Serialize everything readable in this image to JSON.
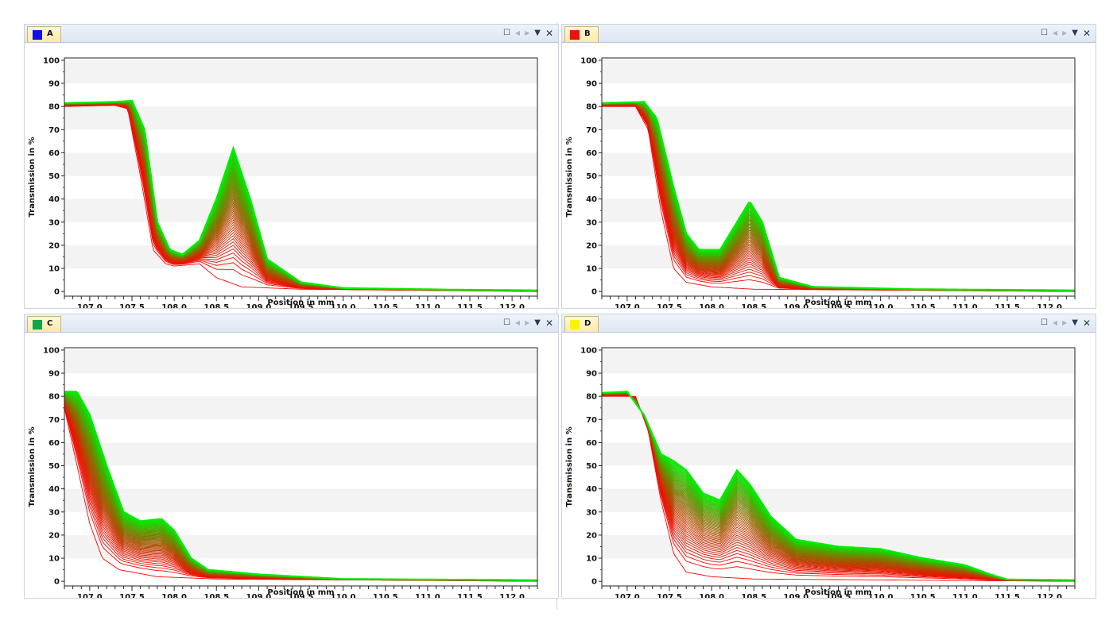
{
  "colors": {
    "red": "#ff0000",
    "green": "#00ee00",
    "grid_band": "#f3f3f3"
  },
  "window_controls": {
    "maximize_icon": "window-maximize-icon",
    "prev_icon": "scroll-left-icon",
    "next_icon": "scroll-right-icon",
    "menu_icon": "dropdown-menu-icon",
    "close_icon": "close-icon"
  },
  "panels": [
    {
      "tab_label": "A",
      "swatch_color": "#1010e8"
    },
    {
      "tab_label": "B",
      "swatch_color": "#ee1111"
    },
    {
      "tab_label": "C",
      "swatch_color": "#16a34a"
    },
    {
      "tab_label": "D",
      "swatch_color": "#f5f500"
    }
  ],
  "chart_data": [
    {
      "type": "line",
      "panel": "A",
      "title": "",
      "xlabel": "Position in mm",
      "ylabel": "Transmission in %",
      "xlim": [
        106.7,
        112.3
      ],
      "ylim": [
        -2,
        101
      ],
      "xticks": [
        "107.0",
        "107.5",
        "108.0",
        "108.5",
        "109.0",
        "109.5",
        "110.0",
        "110.5",
        "111.0",
        "111.5",
        "112.0"
      ],
      "yticks": [
        "0",
        "10",
        "20",
        "30",
        "40",
        "50",
        "60",
        "70",
        "80",
        "90",
        "100"
      ],
      "grid": "horizontal bands",
      "series_count": 60,
      "first_curve": [
        [
          106.7,
          80
        ],
        [
          107.3,
          80.5
        ],
        [
          107.45,
          79
        ],
        [
          107.6,
          50
        ],
        [
          107.75,
          18
        ],
        [
          107.9,
          12
        ],
        [
          108.0,
          11
        ],
        [
          108.3,
          12
        ],
        [
          108.5,
          6
        ],
        [
          108.8,
          2
        ],
        [
          109.5,
          1
        ],
        [
          112.3,
          0
        ]
      ],
      "last_curve": [
        [
          106.7,
          81.5
        ],
        [
          107.3,
          82
        ],
        [
          107.5,
          82.5
        ],
        [
          107.65,
          70
        ],
        [
          107.8,
          30
        ],
        [
          107.95,
          18
        ],
        [
          108.1,
          16
        ],
        [
          108.3,
          22
        ],
        [
          108.5,
          40
        ],
        [
          108.7,
          62
        ],
        [
          108.9,
          40
        ],
        [
          109.1,
          14
        ],
        [
          109.5,
          4
        ],
        [
          110.0,
          1.5
        ],
        [
          111.3,
          0.8
        ],
        [
          112.3,
          0.5
        ]
      ]
    },
    {
      "type": "line",
      "panel": "B",
      "title": "",
      "xlabel": "Position in mm",
      "ylabel": "Transmission in %",
      "xlim": [
        106.7,
        112.3
      ],
      "ylim": [
        -2,
        101
      ],
      "xticks": [
        "107.0",
        "107.5",
        "108.0",
        "108.5",
        "109.0",
        "109.5",
        "110.0",
        "110.5",
        "111.0",
        "111.5",
        "112.0"
      ],
      "yticks": [
        "0",
        "10",
        "20",
        "30",
        "40",
        "50",
        "60",
        "70",
        "80",
        "90",
        "100"
      ],
      "grid": "horizontal bands",
      "series_count": 60,
      "first_curve": [
        [
          106.7,
          80
        ],
        [
          107.1,
          80
        ],
        [
          107.25,
          70
        ],
        [
          107.4,
          35
        ],
        [
          107.55,
          10
        ],
        [
          107.7,
          4
        ],
        [
          108.0,
          2
        ],
        [
          108.5,
          1
        ],
        [
          112.3,
          0
        ]
      ],
      "last_curve": [
        [
          106.7,
          81.5
        ],
        [
          107.2,
          82
        ],
        [
          107.35,
          75
        ],
        [
          107.55,
          45
        ],
        [
          107.7,
          25
        ],
        [
          107.85,
          18
        ],
        [
          108.1,
          18
        ],
        [
          108.3,
          30
        ],
        [
          108.45,
          39
        ],
        [
          108.6,
          30
        ],
        [
          108.8,
          6
        ],
        [
          109.2,
          2
        ],
        [
          110.4,
          1
        ],
        [
          112.3,
          0.5
        ]
      ]
    },
    {
      "type": "line",
      "panel": "C",
      "title": "",
      "xlabel": "Position in mm",
      "ylabel": "Transmission in %",
      "xlim": [
        106.7,
        112.3
      ],
      "ylim": [
        -2,
        101
      ],
      "xticks": [
        "107.0",
        "107.5",
        "108.0",
        "108.5",
        "109.0",
        "109.5",
        "110.0",
        "110.5",
        "111.0",
        "111.5",
        "112.0"
      ],
      "yticks": [
        "0",
        "10",
        "20",
        "30",
        "40",
        "50",
        "60",
        "70",
        "80",
        "90",
        "100"
      ],
      "grid": "horizontal bands",
      "series_count": 60,
      "first_curve": [
        [
          106.7,
          75
        ],
        [
          106.85,
          50
        ],
        [
          107.0,
          25
        ],
        [
          107.15,
          10
        ],
        [
          107.35,
          5
        ],
        [
          107.8,
          2
        ],
        [
          108.5,
          1
        ],
        [
          112.3,
          0
        ]
      ],
      "last_curve": [
        [
          106.7,
          82
        ],
        [
          106.85,
          82
        ],
        [
          107.0,
          72
        ],
        [
          107.2,
          50
        ],
        [
          107.4,
          30
        ],
        [
          107.6,
          26
        ],
        [
          107.85,
          27
        ],
        [
          108.0,
          22
        ],
        [
          108.2,
          10
        ],
        [
          108.4,
          5
        ],
        [
          109.0,
          3
        ],
        [
          110.0,
          1
        ],
        [
          112.3,
          0.5
        ]
      ]
    },
    {
      "type": "line",
      "panel": "D",
      "title": "",
      "xlabel": "Position in mm",
      "ylabel": "Transmission in %",
      "xlim": [
        106.7,
        112.3
      ],
      "ylim": [
        -2,
        101
      ],
      "xticks": [
        "107.0",
        "107.5",
        "108.0",
        "108.5",
        "109.0",
        "109.5",
        "110.0",
        "110.5",
        "111.0",
        "111.5",
        "112.0"
      ],
      "yticks": [
        "0",
        "10",
        "20",
        "30",
        "40",
        "50",
        "60",
        "70",
        "80",
        "90",
        "100"
      ],
      "grid": "horizontal bands",
      "series_count": 60,
      "first_curve": [
        [
          106.7,
          80
        ],
        [
          107.1,
          80
        ],
        [
          107.25,
          65
        ],
        [
          107.4,
          35
        ],
        [
          107.55,
          12
        ],
        [
          107.7,
          4
        ],
        [
          108.0,
          2
        ],
        [
          108.5,
          1
        ],
        [
          112.3,
          0
        ]
      ],
      "last_curve": [
        [
          106.7,
          81.5
        ],
        [
          107.0,
          82
        ],
        [
          107.2,
          72
        ],
        [
          107.4,
          55
        ],
        [
          107.55,
          52
        ],
        [
          107.7,
          48
        ],
        [
          107.9,
          38
        ],
        [
          108.1,
          35
        ],
        [
          108.3,
          48
        ],
        [
          108.45,
          42
        ],
        [
          108.7,
          28
        ],
        [
          109.0,
          18
        ],
        [
          109.5,
          15
        ],
        [
          110.0,
          14
        ],
        [
          110.5,
          10
        ],
        [
          111.0,
          7
        ],
        [
          111.3,
          3
        ],
        [
          111.5,
          0.8
        ],
        [
          112.3,
          0.5
        ]
      ]
    }
  ]
}
